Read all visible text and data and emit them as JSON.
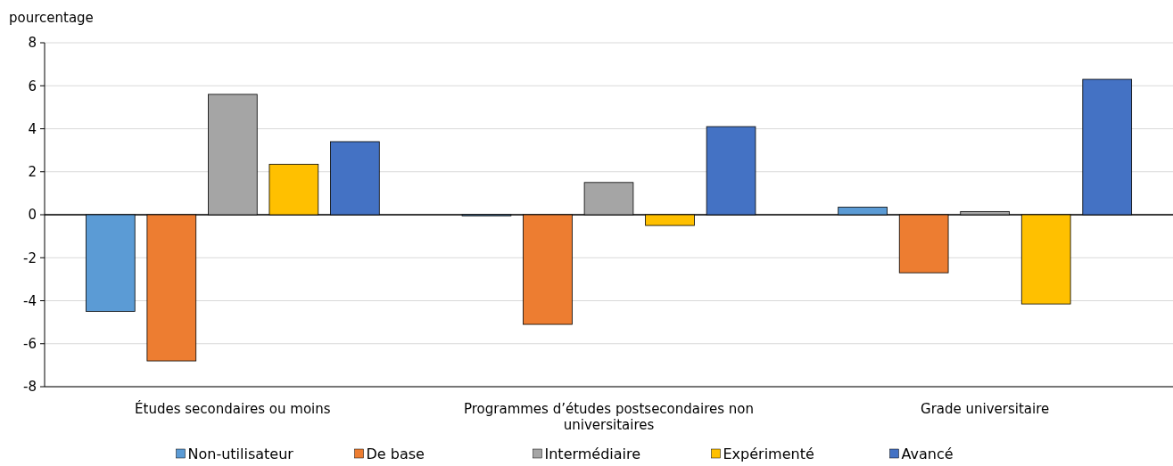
{
  "chart_data": {
    "type": "bar",
    "ylabel": "pourcentage",
    "categories": [
      "Études secondaires ou moins",
      "Programmes d’études postsecondaires non universitaires",
      "Grade universitaire"
    ],
    "series": [
      {
        "name": "Non-utilisateur",
        "color": "#5b9bd5",
        "values": [
          -4.5,
          -0.05,
          0.35
        ]
      },
      {
        "name": "De base",
        "color": "#ed7d31",
        "values": [
          -6.8,
          -5.1,
          -2.7
        ]
      },
      {
        "name": "Intermédiaire",
        "color": "#a5a5a5",
        "values": [
          5.6,
          1.5,
          0.15
        ]
      },
      {
        "name": "Expérimenté",
        "color": "#ffc000",
        "values": [
          2.35,
          -0.5,
          -4.15
        ]
      },
      {
        "name": "Avancé",
        "color": "#4472c4",
        "values": [
          3.4,
          4.1,
          6.3
        ]
      }
    ],
    "ylim": [
      -8,
      8
    ],
    "yticks": [
      -8,
      -6,
      -4,
      -2,
      0,
      2,
      4,
      6,
      8
    ],
    "grid": "y",
    "legend": "bottom"
  }
}
